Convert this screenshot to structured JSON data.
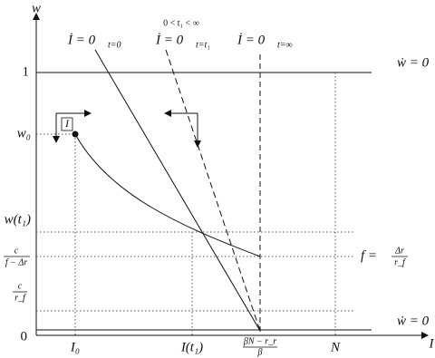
{
  "axes": {
    "y_label": "w",
    "x_label": "I",
    "origin": "0"
  },
  "top_note": "0 < t₁ < ∞",
  "isoclines": [
    {
      "main": "İ = 0",
      "sub": "t=0"
    },
    {
      "main": "İ = 0",
      "sub": "t=t₁"
    },
    {
      "main": "İ = 0",
      "sub": "t=∞"
    }
  ],
  "point_label": "I",
  "y_labels": {
    "one": "1",
    "w0": "w₀",
    "wt1": "w(t₁)",
    "c_f": {
      "num": "c",
      "den": "f − Δr"
    },
    "c_rf": {
      "num": "c",
      "den": "r_f"
    }
  },
  "x_labels": {
    "i0": "I₀",
    "it1": "I(t₁)",
    "beta": {
      "num": "βN − r_r",
      "den": "β"
    },
    "n": "N"
  },
  "right_labels": {
    "wdot_top": "ẇ = 0",
    "f_eq": {
      "lhs": "f =",
      "num": "Δr",
      "den": "r_f"
    },
    "wdot_bottom": "ẇ = 0"
  }
}
